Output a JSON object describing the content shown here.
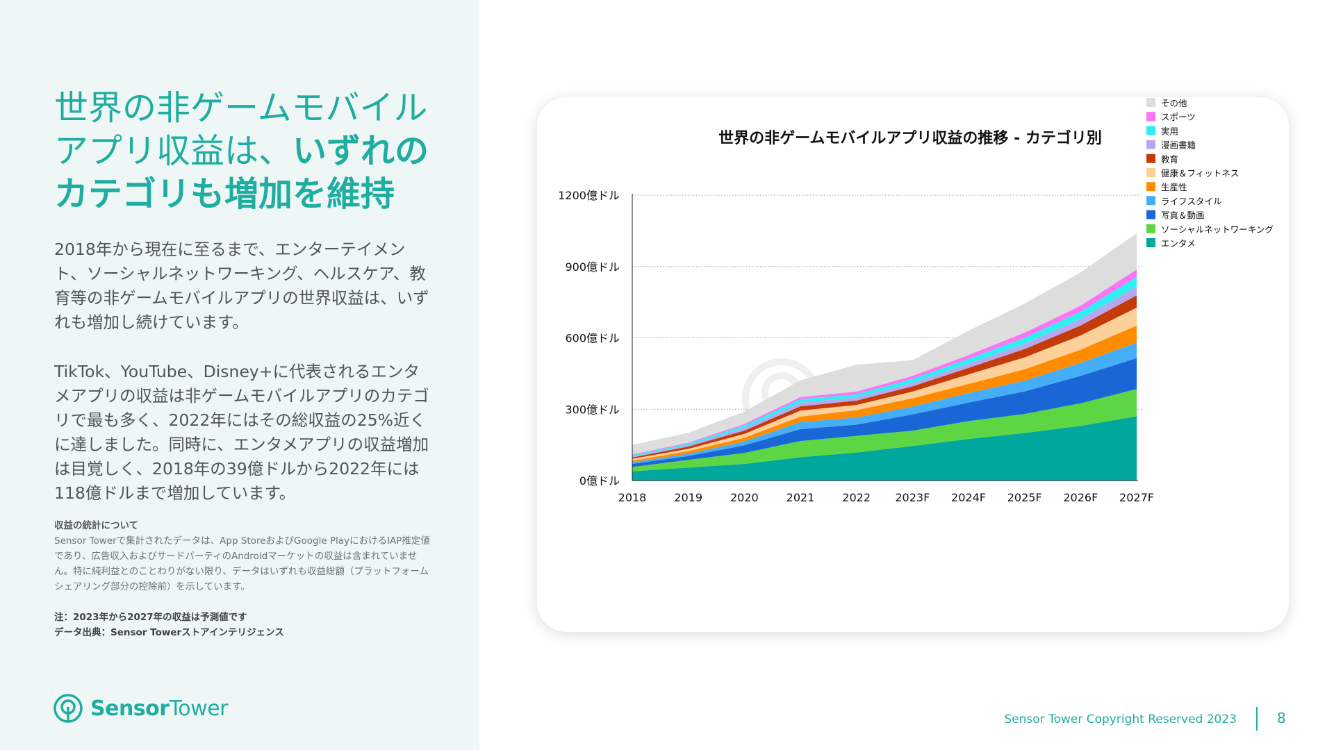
{
  "headline": {
    "line1": "世界の非ゲームモバイル",
    "line2_normal": "アプリ収益は、",
    "line2_bold": "いずれの",
    "line3": "カテゴリも増加を維持"
  },
  "paragraph1": "2018年から現在に至るまで、エンターテイメント、ソーシャルネットワーキング、ヘルスケア、教育等の非ゲームモバイルアプリの世界収益は、いずれも増加し続けています。",
  "paragraph2": "TikTok、YouTube、Disney+に代表されるエンタメアプリの収益は非ゲームモバイルアプリのカテゴリで最も多く、2022年にはその総収益の25%近くに達しました。同時に、エンタメアプリの収益増加は目覚しく、2018年の39億ドルから2022年には118億ドルまで増加しています。",
  "notes": {
    "title": "収益の統計について",
    "body": "Sensor Towerで集計されたデータは、App StoreおよびGoogle PlayにおけるIAP推定値であり、広告収入およびサードパーティのAndroidマーケットの収益は含まれていません。特に純利益とのことわりがない限り、データはいずれも収益総額（プラットフォームシェアリング部分の控除前）を示しています。",
    "note": "注：2023年から2027年の収益は予測値です",
    "source": "データ出典：Sensor Towerストアインテリジェンス"
  },
  "logo": {
    "part1": "Sensor",
    "part2": "Tower"
  },
  "watermark": "SensorTower",
  "footer": {
    "copyright": "Sensor Tower Copyright Reserved 2023",
    "page": "8"
  },
  "colors": {
    "brand": "#1eada0",
    "left_bg": "#eef7f6"
  },
  "chart_data": {
    "type": "area",
    "stacked": true,
    "title": "世界の非ゲームモバイルアプリ収益の推移 - カテゴリ別",
    "categories": [
      "2018",
      "2019",
      "2020",
      "2021",
      "2022",
      "2023F",
      "2024F",
      "2025F",
      "2026F",
      "2027F"
    ],
    "y_ticks": [
      {
        "value": 0,
        "label": "0億ドル"
      },
      {
        "value": 300,
        "label": "300億ドル"
      },
      {
        "value": 600,
        "label": "600億ドル"
      },
      {
        "value": 900,
        "label": "900億ドル"
      },
      {
        "value": 1200,
        "label": "1200億ドル"
      }
    ],
    "ylim": [
      0,
      1200
    ],
    "legend_position": "right",
    "series": [
      {
        "name": "エンタメ",
        "color": "#00a79d",
        "values": [
          39,
          55,
          70,
          98,
          118,
          145,
          175,
          200,
          230,
          270
        ]
      },
      {
        "name": "ソーシャルネットワーキング",
        "color": "#5ed644",
        "values": [
          18,
          32,
          46,
          68,
          70,
          65,
          75,
          80,
          95,
          115
        ]
      },
      {
        "name": "写真＆動画",
        "color": "#1a66d6",
        "values": [
          13,
          16,
          32,
          50,
          47,
          68,
          78,
          95,
          115,
          130
        ]
      },
      {
        "name": "ライフスタイル",
        "color": "#46aef7",
        "values": [
          7,
          10,
          17,
          30,
          30,
          33,
          40,
          45,
          55,
          65
        ]
      },
      {
        "name": "生産性",
        "color": "#ff8c00",
        "values": [
          7,
          11,
          15,
          23,
          31,
          35,
          38,
          48,
          55,
          72
        ]
      },
      {
        "name": "健康＆フィットネス",
        "color": "#fdd09a",
        "values": [
          7,
          9,
          16,
          25,
          22,
          28,
          40,
          50,
          60,
          75
        ]
      },
      {
        "name": "教育",
        "color": "#c23b08",
        "values": [
          6,
          10,
          14,
          18,
          18,
          22,
          28,
          35,
          42,
          52
        ]
      },
      {
        "name": "漫画書籍",
        "color": "#b5a8f0",
        "values": [
          5,
          6,
          12,
          15,
          14,
          15,
          18,
          22,
          28,
          37
        ]
      },
      {
        "name": "実用",
        "color": "#2ef0f0",
        "values": [
          5,
          6,
          10,
          15,
          13,
          16,
          20,
          25,
          30,
          40
        ]
      },
      {
        "name": "スポーツ",
        "color": "#fb75f5",
        "values": [
          3,
          4,
          6,
          9,
          11,
          13,
          16,
          22,
          25,
          32
        ]
      },
      {
        "name": "その他",
        "color": "#dddddd",
        "values": [
          40,
          42,
          52,
          70,
          113,
          66,
          102,
          122,
          140,
          152
        ]
      }
    ]
  }
}
